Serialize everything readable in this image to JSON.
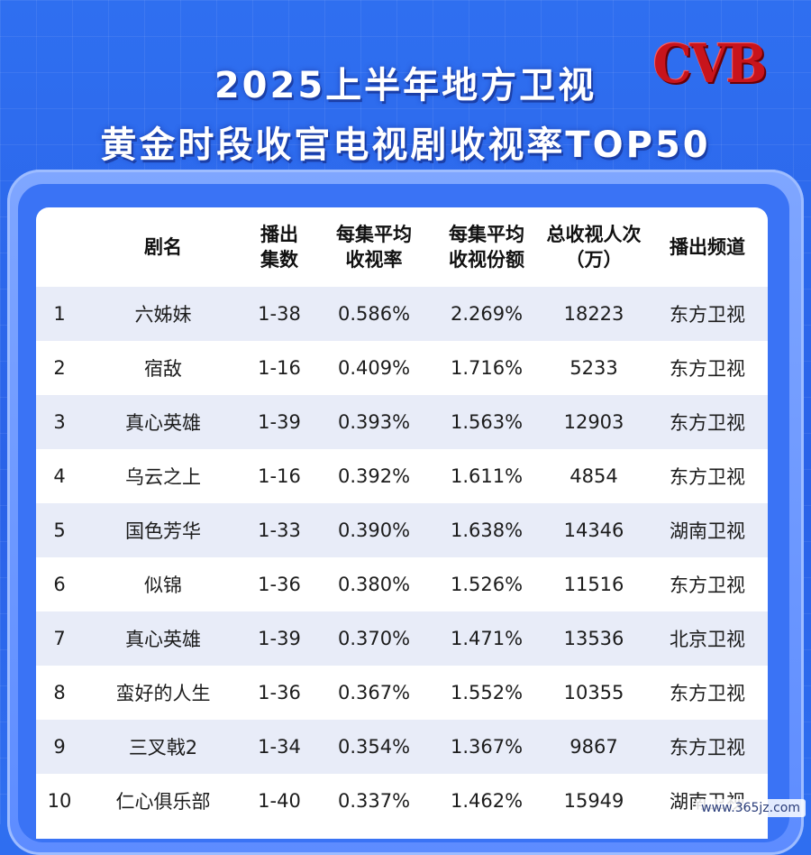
{
  "title_line1": "2025上半年地方卫视",
  "title_line2": "黄金时段收官电视剧收视率TOP50",
  "logo_text": "CVB",
  "watermark": "www.365jz.com",
  "colors": {
    "background": "#2f6ff0",
    "frame": "#7fa6ff",
    "row_shade": "#e8ecf8",
    "logo": "#c8141c"
  },
  "chart_data": {
    "type": "table",
    "title": "2025上半年地方卫视 黄金时段收官电视剧收视率TOP50",
    "columns": [
      {
        "key": "rank",
        "label": ""
      },
      {
        "key": "name",
        "label": "剧名"
      },
      {
        "key": "episodes",
        "label": "播出集数"
      },
      {
        "key": "rating",
        "label": "每集平均收视率"
      },
      {
        "key": "share",
        "label": "每集平均收视份额"
      },
      {
        "key": "total",
        "label": "总收视人次（万）"
      },
      {
        "key": "channel",
        "label": "播出频道"
      }
    ],
    "headers": {
      "name": "剧名",
      "episodes_l1": "播出",
      "episodes_l2": "集数",
      "rating_l1": "每集平均",
      "rating_l2": "收视率",
      "share_l1": "每集平均",
      "share_l2": "收视份额",
      "total_l1": "总收视人次",
      "total_l2": "（万）",
      "channel": "播出频道"
    },
    "rows": [
      {
        "rank": "1",
        "name": "六姊妹",
        "episodes": "1-38",
        "rating": "0.586%",
        "share": "2.269%",
        "total": "18223",
        "channel": "东方卫视"
      },
      {
        "rank": "2",
        "name": "宿敌",
        "episodes": "1-16",
        "rating": "0.409%",
        "share": "1.716%",
        "total": "5233",
        "channel": "东方卫视"
      },
      {
        "rank": "3",
        "name": "真心英雄",
        "episodes": "1-39",
        "rating": "0.393%",
        "share": "1.563%",
        "total": "12903",
        "channel": "东方卫视"
      },
      {
        "rank": "4",
        "name": "乌云之上",
        "episodes": "1-16",
        "rating": "0.392%",
        "share": "1.611%",
        "total": "4854",
        "channel": "东方卫视"
      },
      {
        "rank": "5",
        "name": "国色芳华",
        "episodes": "1-33",
        "rating": "0.390%",
        "share": "1.638%",
        "total": "14346",
        "channel": "湖南卫视"
      },
      {
        "rank": "6",
        "name": "似锦",
        "episodes": "1-36",
        "rating": "0.380%",
        "share": "1.526%",
        "total": "11516",
        "channel": "东方卫视"
      },
      {
        "rank": "7",
        "name": "真心英雄",
        "episodes": "1-39",
        "rating": "0.370%",
        "share": "1.471%",
        "total": "13536",
        "channel": "北京卫视"
      },
      {
        "rank": "8",
        "name": "蛮好的人生",
        "episodes": "1-36",
        "rating": "0.367%",
        "share": "1.552%",
        "total": "10355",
        "channel": "东方卫视"
      },
      {
        "rank": "9",
        "name": "三叉戟2",
        "episodes": "1-34",
        "rating": "0.354%",
        "share": "1.367%",
        "total": "9867",
        "channel": "东方卫视"
      },
      {
        "rank": "10",
        "name": "仁心俱乐部",
        "episodes": "1-40",
        "rating": "0.337%",
        "share": "1.462%",
        "total": "15949",
        "channel": "湖南卫视"
      }
    ]
  }
}
